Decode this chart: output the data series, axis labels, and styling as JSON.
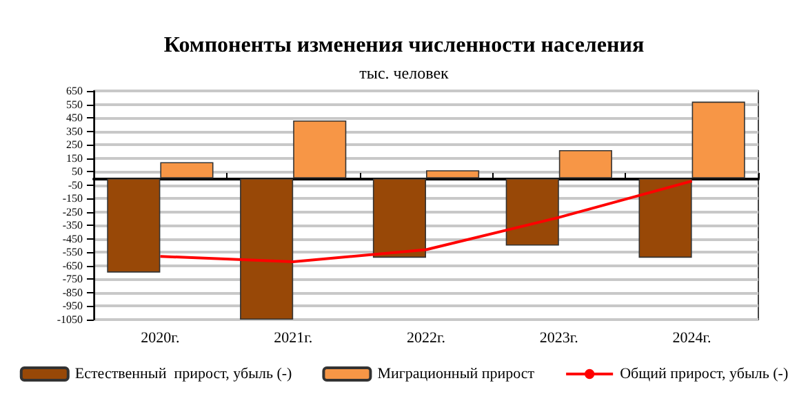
{
  "chart_data": {
    "type": "bar",
    "title": "Компоненты изменения численности населения",
    "subtitle": "тыс. человек",
    "categories": [
      "2020г.",
      "2021г.",
      "2022г.",
      "2023г.",
      "2024г."
    ],
    "series": [
      {
        "name": "Естественный  прирост, убыль (-)",
        "color": "#984807",
        "values": [
          -700,
          -1050,
          -590,
          -500,
          -590
        ]
      },
      {
        "name": "Миграционный прирост",
        "color": "#f79646",
        "values": [
          120,
          430,
          60,
          210,
          570
        ]
      },
      {
        "name": "Общий прирост, убыль (-)",
        "type": "line",
        "color": "#ff0000",
        "marker": "none",
        "values": [
          -580,
          -620,
          -530,
          -290,
          -20
        ]
      }
    ],
    "ylim": [
      -1050,
      650
    ],
    "yticks": [
      -1050,
      -950,
      -850,
      -750,
      -650,
      -550,
      -450,
      -350,
      -250,
      -150,
      -50,
      50,
      150,
      250,
      350,
      450,
      550,
      650
    ],
    "grid": "y",
    "legend": "bottom"
  }
}
